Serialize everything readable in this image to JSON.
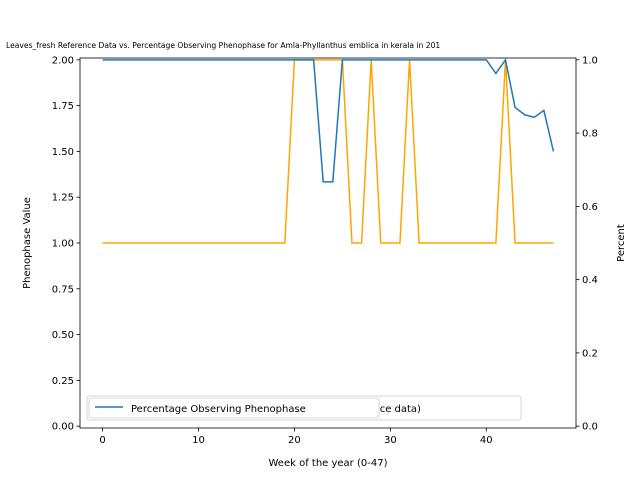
{
  "chart_data": {
    "type": "line",
    "title": "Leaves_fresh Reference Data vs. Percentage Observing Phenophase for Amla-Phyllanthus emblica in kerala in 201",
    "xlabel": "Week of the year (0-47)",
    "ylabel_left": "Phenophase Value",
    "ylabel_right": "Percent",
    "xlim": [
      -2.35,
      49.35
    ],
    "ylim_left": [
      -0.01,
      2.01
    ],
    "ylim_right": [
      -0.005,
      1.005
    ],
    "x_ticks": [
      0,
      10,
      20,
      30,
      40
    ],
    "y_ticks_left": [
      "0.00",
      "0.25",
      "0.50",
      "0.75",
      "1.00",
      "1.25",
      "1.50",
      "1.75",
      "2.00"
    ],
    "y_ticks_right": [
      "0.0",
      "0.2",
      "0.4",
      "0.6",
      "0.8",
      "1.0"
    ],
    "grid": false,
    "legend_position": "lower-left",
    "series": [
      {
        "name": "Percentage Observing Phenophase",
        "axis": "right",
        "color": "#1f77b4",
        "x": [
          0,
          1,
          2,
          3,
          4,
          5,
          6,
          7,
          8,
          9,
          10,
          11,
          12,
          13,
          14,
          15,
          16,
          17,
          18,
          19,
          20,
          21,
          22,
          23,
          24,
          25,
          26,
          27,
          28,
          29,
          30,
          31,
          32,
          33,
          34,
          35,
          36,
          37,
          38,
          39,
          40,
          41,
          42,
          43,
          44,
          45,
          46,
          47
        ],
        "y": [
          1,
          1,
          1,
          1,
          1,
          1,
          1,
          1,
          1,
          1,
          1,
          1,
          1,
          1,
          1,
          1,
          1,
          1,
          1,
          1,
          1,
          1,
          1,
          0.667,
          0.667,
          1,
          1,
          1,
          1,
          1,
          1,
          1,
          1,
          1,
          1,
          1,
          1,
          1,
          1,
          1,
          1,
          0.963,
          1,
          0.87,
          0.85,
          0.843,
          0.862,
          0.75
        ]
      },
      {
        "name": "(expected reference data)",
        "legend_text_partial": "ted reference data)",
        "axis": "left",
        "color": "#ffa500",
        "x": [
          0,
          1,
          2,
          3,
          4,
          5,
          6,
          7,
          8,
          9,
          10,
          11,
          12,
          13,
          14,
          15,
          16,
          17,
          18,
          19,
          20,
          21,
          22,
          23,
          24,
          25,
          26,
          27,
          28,
          29,
          30,
          31,
          32,
          33,
          34,
          35,
          36,
          37,
          38,
          39,
          40,
          41,
          42,
          43,
          44,
          45,
          46,
          47
        ],
        "y": [
          1,
          1,
          1,
          1,
          1,
          1,
          1,
          1,
          1,
          1,
          1,
          1,
          1,
          1,
          1,
          1,
          1,
          1,
          1,
          1,
          2,
          2,
          2,
          2,
          2,
          2,
          1,
          1,
          2,
          1,
          1,
          1,
          2,
          1,
          1,
          1,
          1,
          1,
          1,
          1,
          1,
          1,
          2,
          1,
          1,
          1,
          1,
          1
        ]
      }
    ]
  }
}
